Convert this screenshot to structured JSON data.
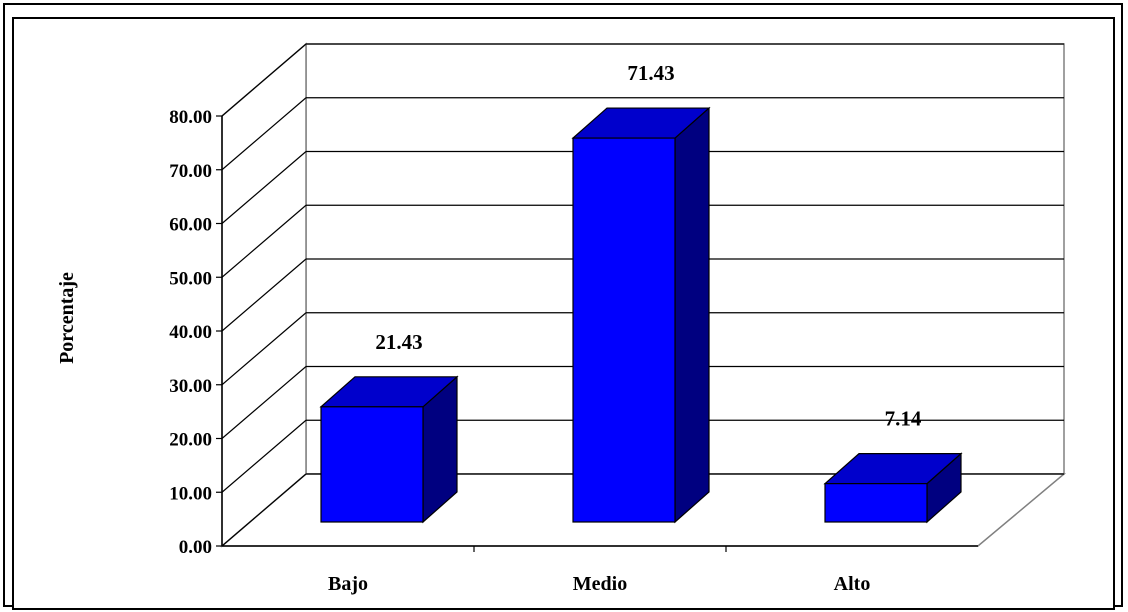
{
  "chart_data": {
    "type": "bar",
    "categories": [
      "Bajo",
      "Medio",
      "Alto"
    ],
    "values": [
      21.43,
      71.43,
      7.14
    ],
    "data_labels": [
      "21.43",
      "71.43",
      "7.14"
    ],
    "ylabel": "Porcentaje",
    "xlabel": "",
    "ylim": [
      0,
      80
    ],
    "yticks": [
      "0.00",
      "10.00",
      "20.00",
      "30.00",
      "40.00",
      "50.00",
      "60.00",
      "70.00",
      "80.00"
    ],
    "grid": true,
    "legend": "none",
    "style": "3d-column",
    "colors": {
      "bar_front": "#0000ff",
      "bar_top": "#0000cc",
      "bar_side": "#000080",
      "background": "#ffffff",
      "gridline": "#000000",
      "wall": "#808080"
    }
  }
}
